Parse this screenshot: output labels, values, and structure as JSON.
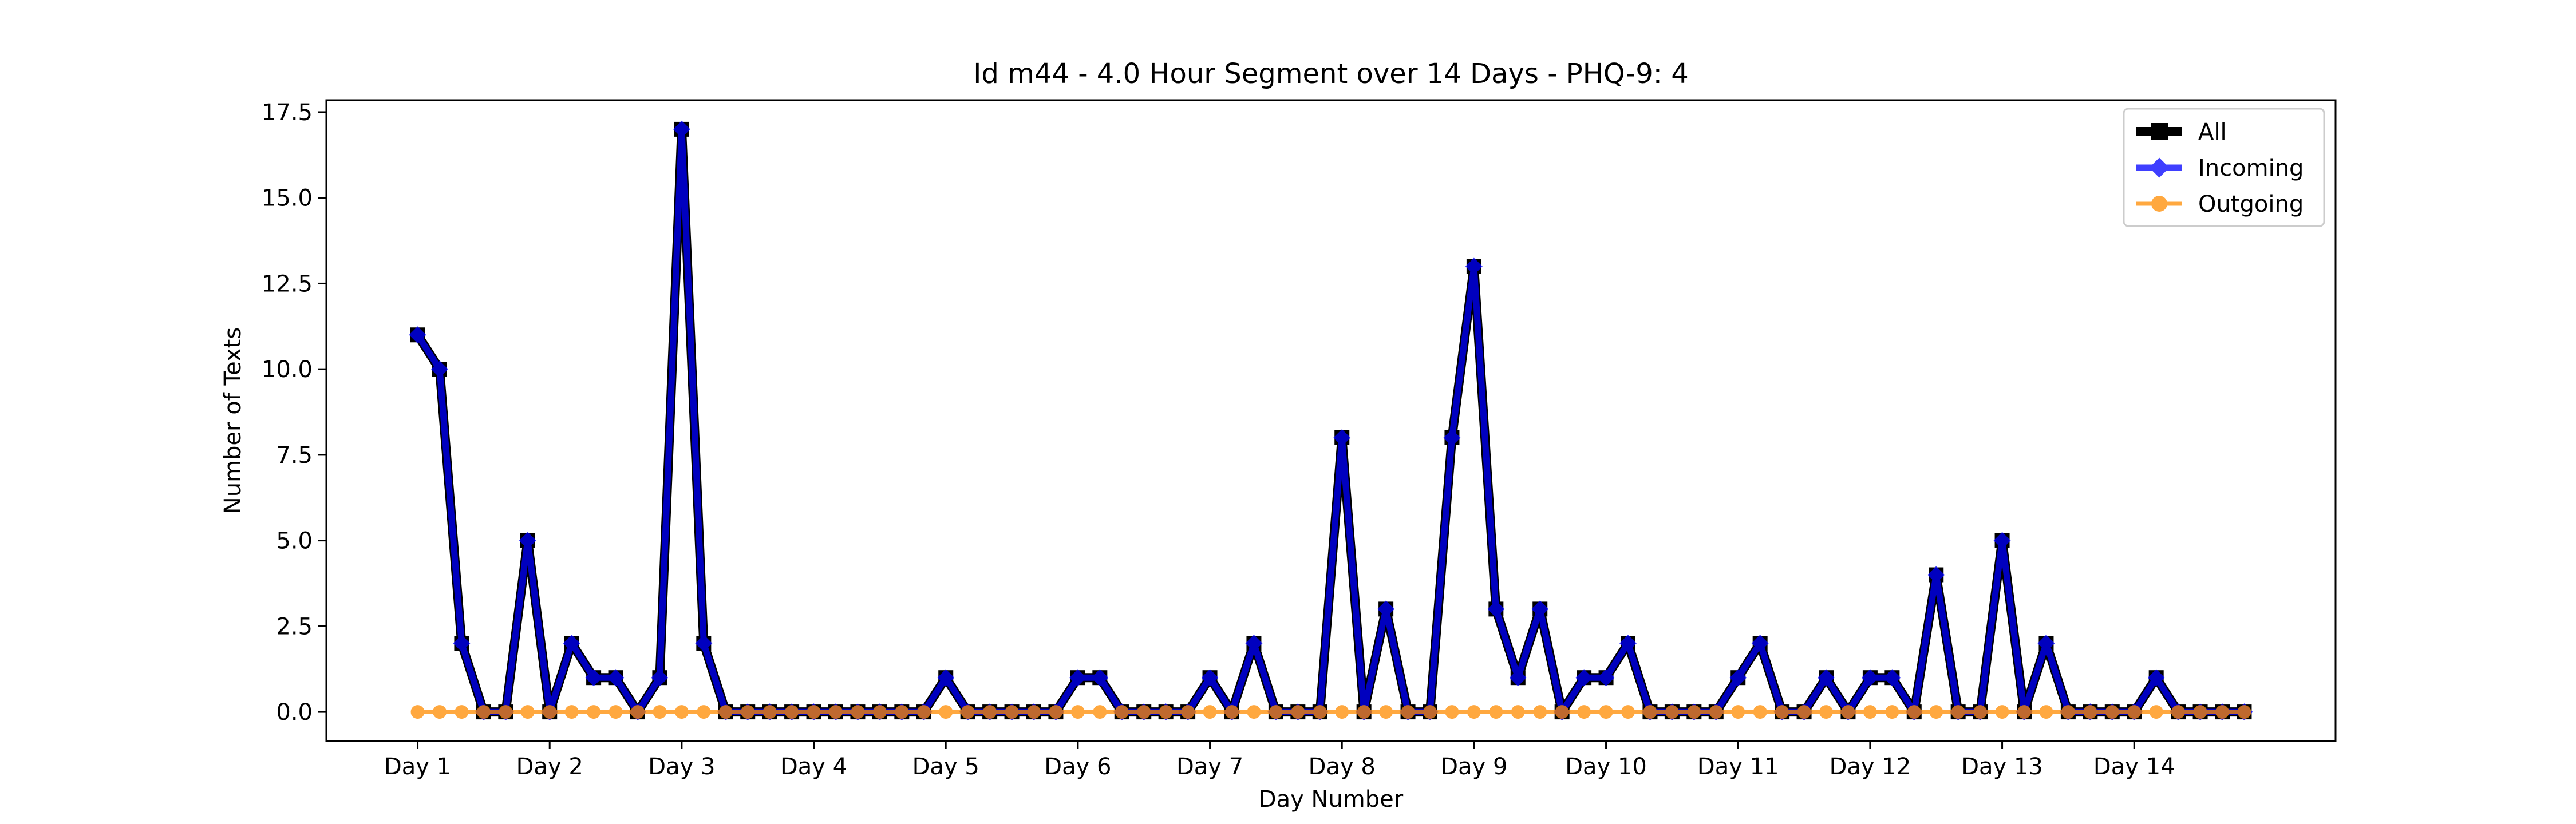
{
  "chart_data": {
    "type": "line",
    "title": "Id m44 - 4.0 Hour Segment over 14 Days - PHQ-9: 4",
    "xlabel": "Day Number",
    "ylabel": "Number of Texts",
    "xlim": [
      -4.15,
      87.15
    ],
    "ylim": [
      -0.85,
      17.85
    ],
    "x_ticks": [
      0,
      6,
      12,
      18,
      24,
      30,
      36,
      42,
      48,
      54,
      60,
      66,
      72,
      78
    ],
    "x_tick_labels": [
      "Day 1",
      "Day 2",
      "Day 3",
      "Day 4",
      "Day 5",
      "Day 6",
      "Day 7",
      "Day 8",
      "Day 9",
      "Day 10",
      "Day 11",
      "Day 12",
      "Day 13",
      "Day 14"
    ],
    "y_ticks": [
      0,
      2.5,
      5,
      7.5,
      10,
      12.5,
      15,
      17.5
    ],
    "y_tick_labels": [
      "0.0",
      "2.5",
      "5.0",
      "7.5",
      "10.0",
      "12.5",
      "15.0",
      "17.5"
    ],
    "grid": false,
    "legend_position": "top-right",
    "x": [
      0,
      1,
      2,
      3,
      4,
      5,
      6,
      7,
      8,
      9,
      10,
      11,
      12,
      13,
      14,
      15,
      16,
      17,
      18,
      19,
      20,
      21,
      22,
      23,
      24,
      25,
      26,
      27,
      28,
      29,
      30,
      31,
      32,
      33,
      34,
      35,
      36,
      37,
      38,
      39,
      40,
      41,
      42,
      43,
      44,
      45,
      46,
      47,
      48,
      49,
      50,
      51,
      52,
      53,
      54,
      55,
      56,
      57,
      58,
      59,
      60,
      61,
      62,
      63,
      64,
      65,
      66,
      67,
      68,
      69,
      70,
      71,
      72,
      73,
      74,
      75,
      76,
      77,
      78,
      79,
      80,
      81,
      82,
      83
    ],
    "series": [
      {
        "name": "All",
        "color": "#000000",
        "marker": "square",
        "values": [
          11,
          10,
          2,
          0,
          0,
          5,
          0,
          2,
          1,
          1,
          0,
          1,
          17,
          2,
          0,
          0,
          0,
          0,
          0,
          0,
          0,
          0,
          0,
          0,
          1,
          0,
          0,
          0,
          0,
          0,
          1,
          1,
          0,
          0,
          0,
          0,
          1,
          0,
          2,
          0,
          0,
          0,
          8,
          0,
          3,
          0,
          0,
          8,
          13,
          3,
          1,
          3,
          0,
          1,
          1,
          2,
          0,
          0,
          0,
          0,
          1,
          2,
          0,
          0,
          1,
          0,
          1,
          1,
          0,
          4,
          0,
          0,
          5,
          0,
          2,
          0,
          0,
          0,
          0,
          1,
          0,
          0,
          0,
          0
        ]
      },
      {
        "name": "Incoming",
        "color": "#0000ff",
        "marker": "diamond",
        "values": [
          11,
          10,
          2,
          0,
          0,
          5,
          0,
          2,
          1,
          1,
          0,
          1,
          17,
          2,
          0,
          0,
          0,
          0,
          0,
          0,
          0,
          0,
          0,
          0,
          1,
          0,
          0,
          0,
          0,
          0,
          1,
          1,
          0,
          0,
          0,
          0,
          1,
          0,
          2,
          0,
          0,
          0,
          8,
          0,
          3,
          0,
          0,
          8,
          13,
          3,
          1,
          3,
          0,
          1,
          1,
          2,
          0,
          0,
          0,
          0,
          1,
          2,
          0,
          0,
          1,
          0,
          1,
          1,
          0,
          4,
          0,
          0,
          5,
          0,
          2,
          0,
          0,
          0,
          0,
          1,
          0,
          0,
          0,
          0
        ]
      },
      {
        "name": "Outgoing",
        "color": "#ff8c00",
        "marker": "circle",
        "values": [
          0,
          0,
          0,
          0,
          0,
          0,
          0,
          0,
          0,
          0,
          0,
          0,
          0,
          0,
          0,
          0,
          0,
          0,
          0,
          0,
          0,
          0,
          0,
          0,
          0,
          0,
          0,
          0,
          0,
          0,
          0,
          0,
          0,
          0,
          0,
          0,
          0,
          0,
          0,
          0,
          0,
          0,
          0,
          0,
          0,
          0,
          0,
          0,
          0,
          0,
          0,
          0,
          0,
          0,
          0,
          0,
          0,
          0,
          0,
          0,
          0,
          0,
          0,
          0,
          0,
          0,
          0,
          0,
          0,
          0,
          0,
          0,
          0,
          0,
          0,
          0,
          0,
          0,
          0,
          0,
          0,
          0,
          0,
          0
        ]
      }
    ]
  }
}
